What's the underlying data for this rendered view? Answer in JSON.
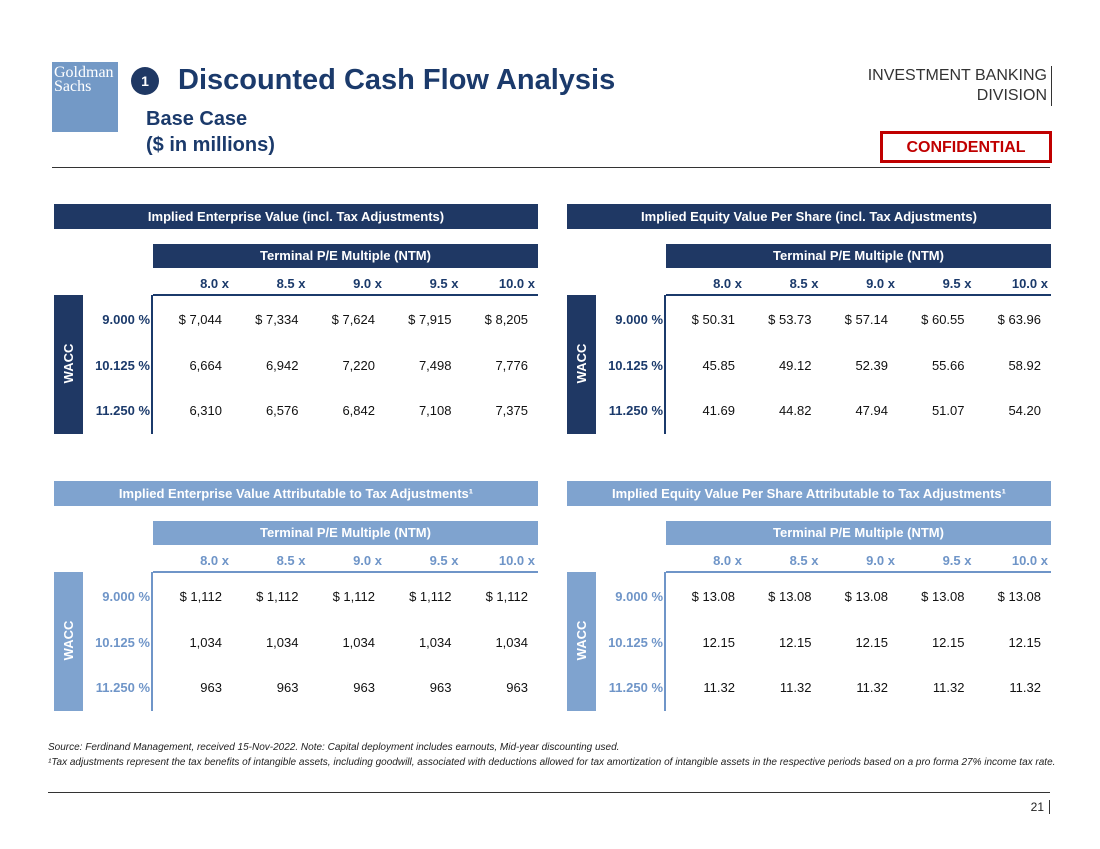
{
  "header": {
    "logo_lines": [
      "Goldman",
      "Sachs"
    ],
    "badge": "1",
    "title": "Discounted Cash Flow Analysis",
    "subtitle_lines": [
      "Base Case",
      "($ in millions)"
    ],
    "division_lines": [
      "INVESTMENT BANKING",
      "DIVISION"
    ],
    "confidential": "CONFIDENTIAL"
  },
  "tables": [
    {
      "title": "Implied Enterprise Value (incl. Tax Adjustments)",
      "column_header": "Terminal P/E Multiple (NTM)",
      "columns": [
        "8.0 x",
        "8.5 x",
        "9.0 x",
        "9.5 x",
        "10.0 x"
      ],
      "row_header": "WACC",
      "rows": [
        {
          "label": "9.000 %",
          "cells": [
            "$ 7,044",
            "$ 7,334",
            "$ 7,624",
            "$ 7,915",
            "$ 8,205"
          ]
        },
        {
          "label": "10.125 %",
          "cells": [
            "6,664",
            "6,942",
            "7,220",
            "7,498",
            "7,776"
          ]
        },
        {
          "label": "11.250 %",
          "cells": [
            "6,310",
            "6,576",
            "6,842",
            "7,108",
            "7,375"
          ]
        }
      ]
    },
    {
      "title": "Implied Equity Value Per Share (incl. Tax Adjustments)",
      "column_header": "Terminal P/E Multiple (NTM)",
      "columns": [
        "8.0 x",
        "8.5 x",
        "9.0 x",
        "9.5 x",
        "10.0 x"
      ],
      "row_header": "WACC",
      "rows": [
        {
          "label": "9.000 %",
          "cells": [
            "$ 50.31",
            "$ 53.73",
            "$ 57.14",
            "$ 60.55",
            "$ 63.96"
          ]
        },
        {
          "label": "10.125 %",
          "cells": [
            "45.85",
            "49.12",
            "52.39",
            "55.66",
            "58.92"
          ]
        },
        {
          "label": "11.250 %",
          "cells": [
            "41.69",
            "44.82",
            "47.94",
            "51.07",
            "54.20"
          ]
        }
      ]
    },
    {
      "title": "Implied Enterprise Value Attributable to Tax Adjustments¹",
      "column_header": "Terminal P/E Multiple (NTM)",
      "columns": [
        "8.0 x",
        "8.5 x",
        "9.0 x",
        "9.5 x",
        "10.0 x"
      ],
      "row_header": "WACC",
      "rows": [
        {
          "label": "9.000 %",
          "cells": [
            "$ 1,112",
            "$ 1,112",
            "$ 1,112",
            "$ 1,112",
            "$ 1,112"
          ]
        },
        {
          "label": "10.125 %",
          "cells": [
            "1,034",
            "1,034",
            "1,034",
            "1,034",
            "1,034"
          ]
        },
        {
          "label": "11.250 %",
          "cells": [
            "963",
            "963",
            "963",
            "963",
            "963"
          ]
        }
      ]
    },
    {
      "title": "Implied Equity Value Per Share Attributable to Tax Adjustments¹",
      "column_header": "Terminal P/E Multiple (NTM)",
      "columns": [
        "8.0 x",
        "8.5 x",
        "9.0 x",
        "9.5 x",
        "10.0 x"
      ],
      "row_header": "WACC",
      "rows": [
        {
          "label": "9.000 %",
          "cells": [
            "$ 13.08",
            "$ 13.08",
            "$ 13.08",
            "$ 13.08",
            "$ 13.08"
          ]
        },
        {
          "label": "10.125 %",
          "cells": [
            "12.15",
            "12.15",
            "12.15",
            "12.15",
            "12.15"
          ]
        },
        {
          "label": "11.250 %",
          "cells": [
            "11.32",
            "11.32",
            "11.32",
            "11.32",
            "11.32"
          ]
        }
      ]
    }
  ],
  "footnotes": [
    "Source: Ferdinand Management, received 15-Nov-2022. Note: Capital deployment includes earnouts, Mid-year discounting used.",
    "¹Tax adjustments represent the tax benefits of intangible assets, including goodwill, associated with deductions allowed for tax amortization of intangible assets in the respective periods based on a pro forma 27% income tax rate."
  ],
  "page_number": "21"
}
